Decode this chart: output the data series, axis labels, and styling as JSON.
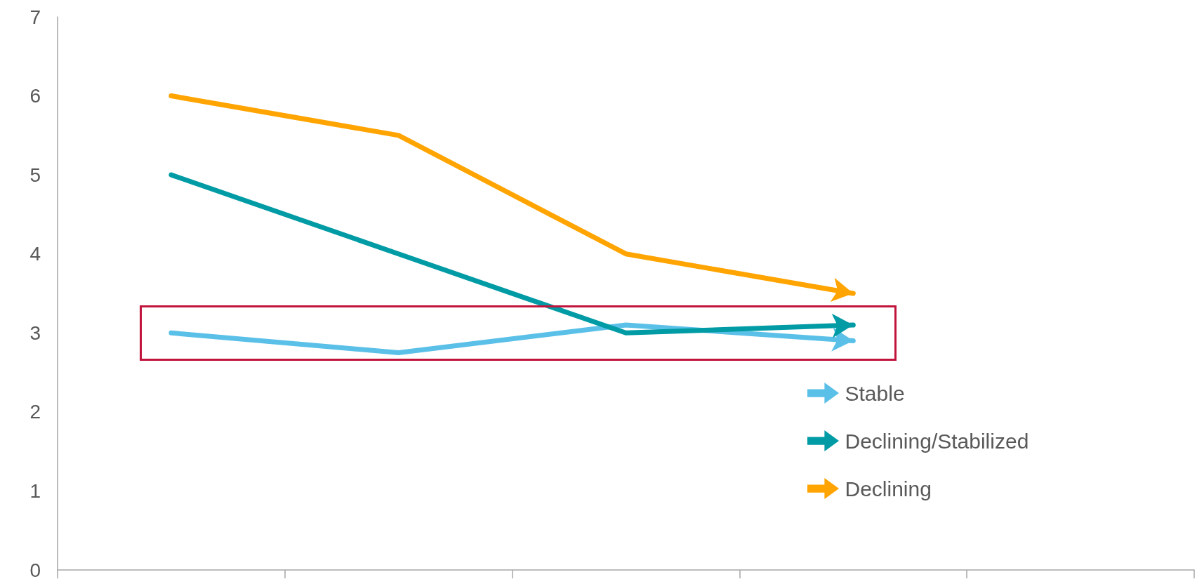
{
  "chart_data": {
    "type": "line",
    "categories": [
      null,
      null,
      null,
      null,
      null
    ],
    "series": [
      {
        "name": "Stable",
        "color": "#5bc0e8",
        "values": [
          3,
          2.75,
          3.1,
          2.9,
          null
        ]
      },
      {
        "name": "Declining/Stabilized",
        "color": "#009ba4",
        "values": [
          5,
          4,
          3,
          3.1,
          null
        ]
      },
      {
        "name": "Declining",
        "color": "#ffa400",
        "values": [
          6,
          5.5,
          4,
          3.5,
          null
        ]
      }
    ],
    "ylim": [
      0,
      7
    ],
    "yticks": [
      0,
      1,
      2,
      3,
      4,
      5,
      6,
      7
    ],
    "grid": false,
    "legend": "bottom right",
    "marker": "none",
    "line_style": "solid"
  }
}
